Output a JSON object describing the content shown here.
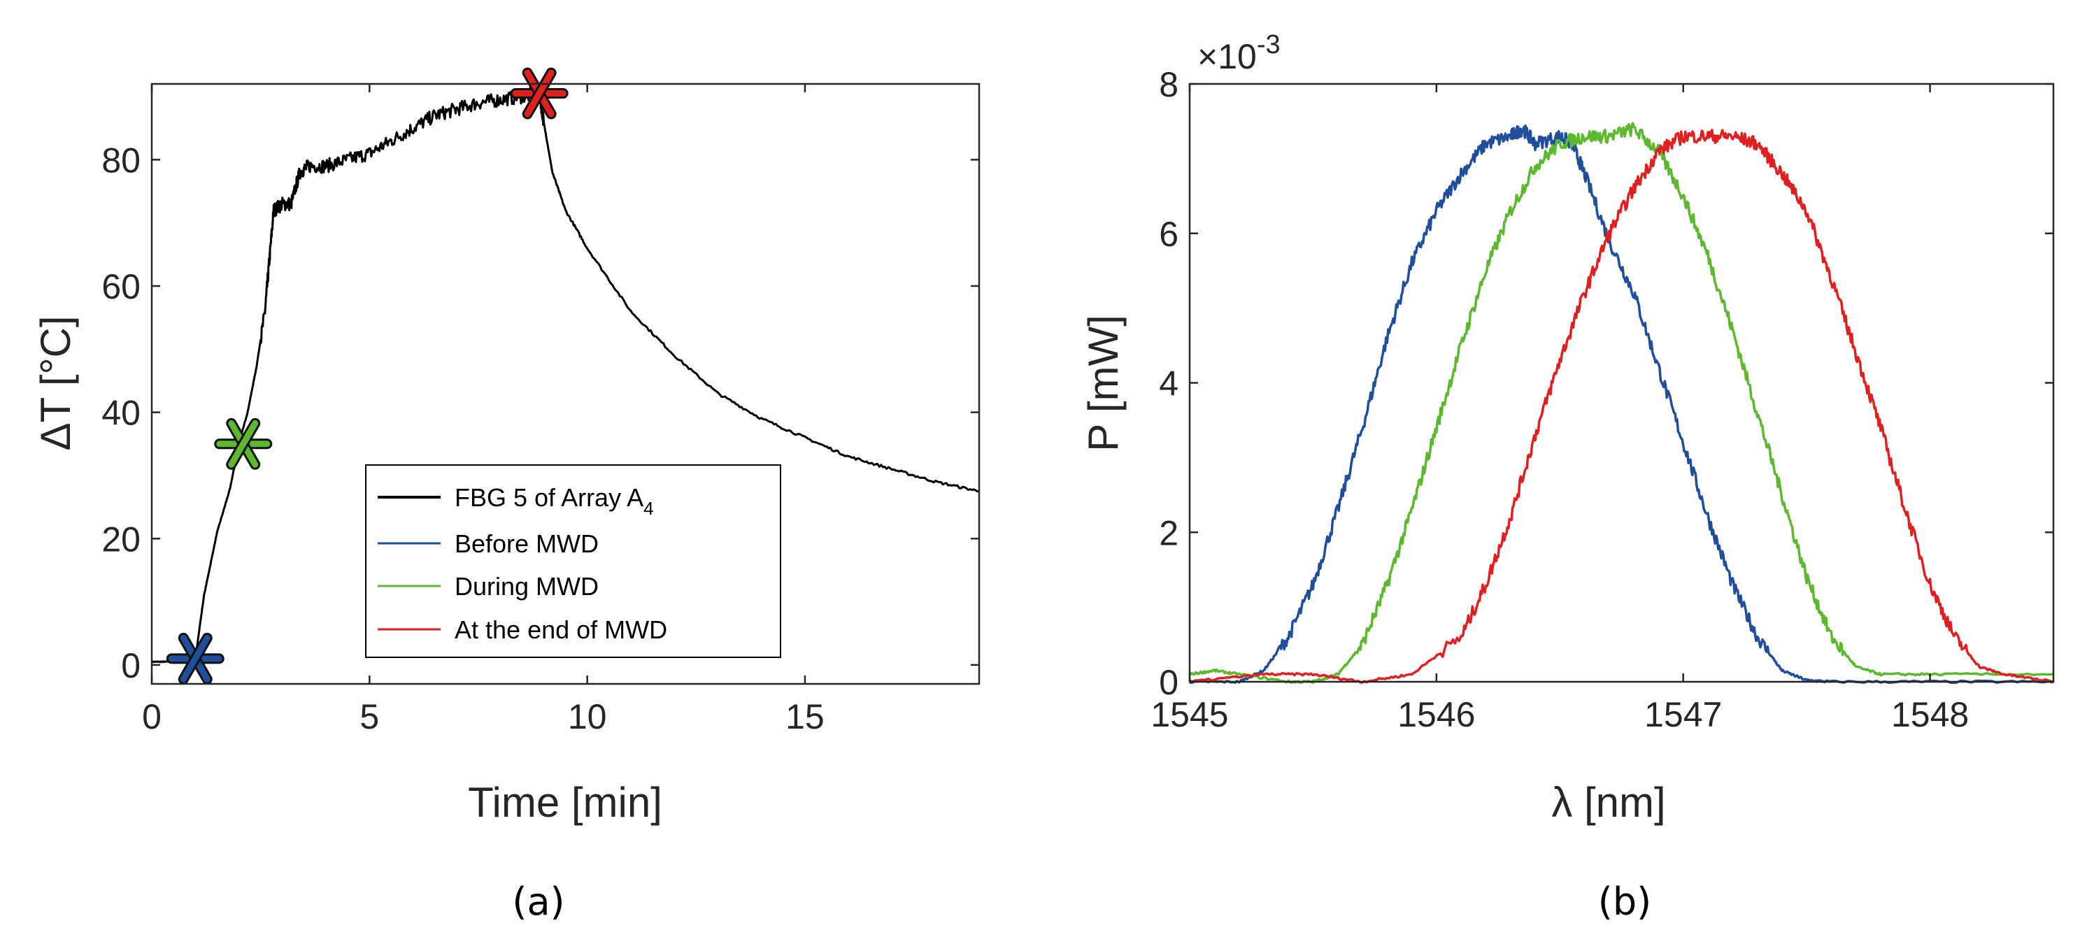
{
  "chart_data": [
    {
      "type": "line",
      "caption": "(a)",
      "xlabel": "Time [min]",
      "ylabel": "ΔT [°C]",
      "xlim": [
        0,
        19
      ],
      "ylim": [
        -3,
        92
      ],
      "xticks": [
        0,
        5,
        10,
        15
      ],
      "yticks": [
        0,
        20,
        40,
        60,
        80
      ],
      "grid": false,
      "legend_placement": "lower-right",
      "legend": [
        {
          "label": "FBG 5 of Array A",
          "subscript": "4",
          "color": "#000000"
        },
        {
          "label": "Before MWD",
          "color": "#1f4e9c"
        },
        {
          "label": "During MWD",
          "color": "#5cb82e"
        },
        {
          "label": "At the end of MWD",
          "color": "#e02020"
        }
      ],
      "series": [
        {
          "name": "FBG 5 of Array A4",
          "color": "#000000",
          "x": [
            0,
            0.3,
            0.6,
            0.9,
            1.0,
            1.2,
            1.5,
            1.8,
            2.0,
            2.2,
            2.4,
            2.6,
            2.7,
            2.8,
            3.0,
            3.2,
            3.4,
            3.6,
            4.0,
            4.5,
            5.0,
            5.5,
            6.0,
            6.5,
            7.0,
            7.5,
            8.0,
            8.5,
            8.9,
            9.0,
            9.2,
            9.5,
            10.0,
            11.0,
            12.0,
            13.0,
            14.0,
            15.0,
            16.0,
            17.0,
            18.0,
            19.0
          ],
          "y": [
            0.5,
            0.5,
            0.6,
            0.8,
            1.0,
            11,
            21,
            28,
            35,
            40,
            47,
            56,
            64,
            72,
            73,
            73,
            78,
            79,
            79,
            80,
            81,
            83,
            85,
            87,
            88,
            89,
            89.5,
            90,
            90.5,
            86,
            78,
            72,
            66,
            56,
            49,
            43,
            39,
            36,
            33,
            31,
            29,
            27.5
          ]
        }
      ],
      "markers": [
        {
          "name": "Before MWD",
          "x": 1.0,
          "y": 1,
          "color": "#1f4e9c"
        },
        {
          "name": "During MWD",
          "x": 2.1,
          "y": 35,
          "color": "#5cb82e"
        },
        {
          "name": "At the end of MWD",
          "x": 8.9,
          "y": 90.5,
          "color": "#e02020"
        }
      ]
    },
    {
      "type": "line",
      "caption": "(b)",
      "xlabel": "λ [nm]",
      "ylabel": "P [mW]",
      "xlim": [
        1545,
        1548.5
      ],
      "ylim": [
        0,
        0.008
      ],
      "xticks": [
        1545,
        1546,
        1547,
        1548
      ],
      "yticks": [
        0,
        2,
        4,
        6,
        8
      ],
      "yscale_label": "×10",
      "yscale_exponent": "-3",
      "grid": false,
      "series": [
        {
          "name": "Before MWD",
          "color": "#1f4e9c",
          "x": [
            1545,
            1545.2,
            1545.3,
            1545.4,
            1545.5,
            1545.6,
            1545.7,
            1545.8,
            1545.9,
            1546.0,
            1546.1,
            1546.2,
            1546.3,
            1546.35,
            1546.4,
            1546.5,
            1546.55,
            1546.6,
            1546.7,
            1546.8,
            1546.9,
            1547.0,
            1547.1,
            1547.2,
            1547.3,
            1547.4,
            1547.5,
            1547.6,
            1548.0,
            1548.5
          ],
          "y": [
            0,
            0,
            0.00015,
            0.0006,
            0.0013,
            0.0023,
            0.0034,
            0.0046,
            0.0056,
            0.0063,
            0.0068,
            0.0072,
            0.0073,
            0.0074,
            0.0072,
            0.0073,
            0.0072,
            0.0068,
            0.0059,
            0.0052,
            0.0042,
            0.0032,
            0.0022,
            0.0013,
            0.0006,
            0.00015,
            2e-05,
            0,
            0,
            0
          ]
        },
        {
          "name": "During MWD",
          "color": "#5cb82e",
          "x": [
            1545,
            1545.1,
            1545.2,
            1545.4,
            1545.5,
            1545.6,
            1545.7,
            1545.8,
            1545.9,
            1546.0,
            1546.1,
            1546.2,
            1546.3,
            1546.4,
            1546.5,
            1546.6,
            1546.7,
            1546.8,
            1546.9,
            1547.0,
            1547.1,
            1547.2,
            1547.3,
            1547.4,
            1547.5,
            1547.6,
            1547.7,
            1547.8,
            1548.0,
            1548.5
          ],
          "y": [
            0.0001,
            0.00015,
            0.0001,
            0,
            0,
            0.0001,
            0.0005,
            0.0013,
            0.0023,
            0.0034,
            0.0045,
            0.0055,
            0.0063,
            0.0069,
            0.0072,
            0.0073,
            0.0073,
            0.0074,
            0.0071,
            0.0065,
            0.0057,
            0.0047,
            0.0036,
            0.0025,
            0.0014,
            0.0006,
            0.0002,
            0.0001,
            0.0001,
            0.0001
          ]
        },
        {
          "name": "At the end of MWD",
          "color": "#e02020",
          "x": [
            1545,
            1545.3,
            1545.5,
            1545.7,
            1545.9,
            1546.1,
            1546.2,
            1546.3,
            1546.4,
            1546.5,
            1546.6,
            1546.7,
            1546.8,
            1546.9,
            1547.0,
            1547.1,
            1547.2,
            1547.3,
            1547.4,
            1547.5,
            1547.6,
            1547.7,
            1547.8,
            1547.9,
            1548.0,
            1548.1,
            1548.2,
            1548.3,
            1548.5
          ],
          "y": [
            0,
            0.0001,
            0.0001,
            0,
            0.0001,
            0.0006,
            0.0013,
            0.0022,
            0.0033,
            0.0043,
            0.0052,
            0.006,
            0.0066,
            0.0071,
            0.0073,
            0.0073,
            0.0073,
            0.0072,
            0.0068,
            0.0063,
            0.0054,
            0.0044,
            0.0034,
            0.0023,
            0.0013,
            0.0006,
            0.0002,
            0.0001,
            0
          ]
        }
      ]
    }
  ]
}
